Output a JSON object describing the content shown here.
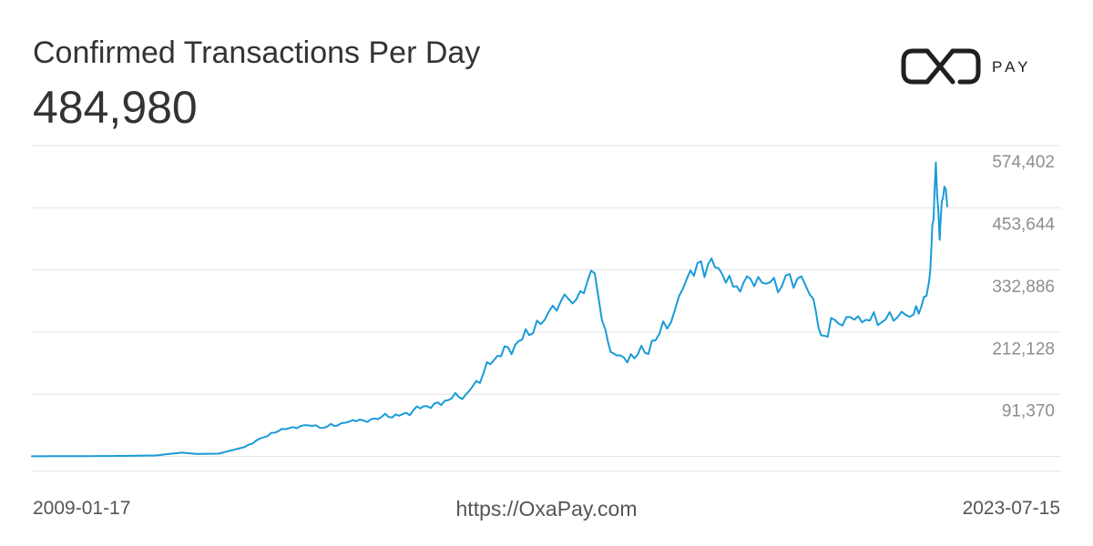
{
  "header": {
    "title": "Confirmed Transactions Per Day",
    "current_value": "484,980"
  },
  "brand": {
    "logo_text": "PAY",
    "logo_color": "#1f1f1f"
  },
  "footer": {
    "x_start_label": "2009-01-17",
    "x_end_label": "2023-07-15",
    "source_url": "https://OxaPay.com"
  },
  "colors": {
    "line": "#1a9bd7",
    "grid": "#e3e3e3",
    "tick_text": "#8e8e8e",
    "title_text": "#333333"
  },
  "chart_data": {
    "type": "line",
    "title": "Confirmed Transactions Per Day",
    "x_range": [
      "2009-01-17",
      "2023-07-15"
    ],
    "ylim": [
      -29388,
      603000
    ],
    "yticks": [
      {
        "value": 91370,
        "label": "91,370"
      },
      {
        "value": 212128,
        "label": "212,128"
      },
      {
        "value": 332886,
        "label": "332,886"
      },
      {
        "value": 453644,
        "label": "453,644"
      },
      {
        "value": 574402,
        "label": "574,402"
      }
    ],
    "grid": true,
    "legend": "none",
    "latest_value": 484980,
    "x": [
      "2009-01-17",
      "2009-07-01",
      "2010-01-01",
      "2010-07-01",
      "2011-01-01",
      "2011-06-01",
      "2011-09-01",
      "2012-01-01",
      "2012-06-01",
      "2012-09-01",
      "2013-01-01",
      "2013-06-01",
      "2013-09-01",
      "2014-01-01",
      "2014-06-01",
      "2014-12-01",
      "2015-06-01",
      "2015-12-01",
      "2016-06-01",
      "2016-12-01",
      "2017-03-01",
      "2017-06-01",
      "2017-09-01",
      "2017-12-15",
      "2018-02-15",
      "2018-04-01",
      "2018-08-01",
      "2018-12-01",
      "2019-03-01",
      "2019-06-01",
      "2019-08-01",
      "2019-12-01",
      "2020-03-15",
      "2020-06-01",
      "2020-09-01",
      "2020-12-01",
      "2021-03-01",
      "2021-06-01",
      "2021-07-15",
      "2021-10-01",
      "2022-01-01",
      "2022-04-01",
      "2022-07-01",
      "2022-10-01",
      "2023-01-01",
      "2023-02-15",
      "2023-04-01",
      "2023-04-20",
      "2023-05-10",
      "2023-06-01",
      "2023-06-20",
      "2023-07-15"
    ],
    "values": [
      0,
      150,
      300,
      600,
      1500,
      7000,
      4500,
      5000,
      18000,
      35000,
      53000,
      60000,
      55000,
      65000,
      72000,
      82000,
      102000,
      120000,
      195000,
      235000,
      265000,
      300000,
      305000,
      355000,
      245000,
      200000,
      190000,
      225000,
      260000,
      345000,
      375000,
      365000,
      330000,
      345000,
      335000,
      330000,
      345000,
      305000,
      235000,
      265000,
      270000,
      265000,
      260000,
      270000,
      275000,
      290000,
      340000,
      450000,
      570000,
      420000,
      500000,
      484980
    ]
  }
}
